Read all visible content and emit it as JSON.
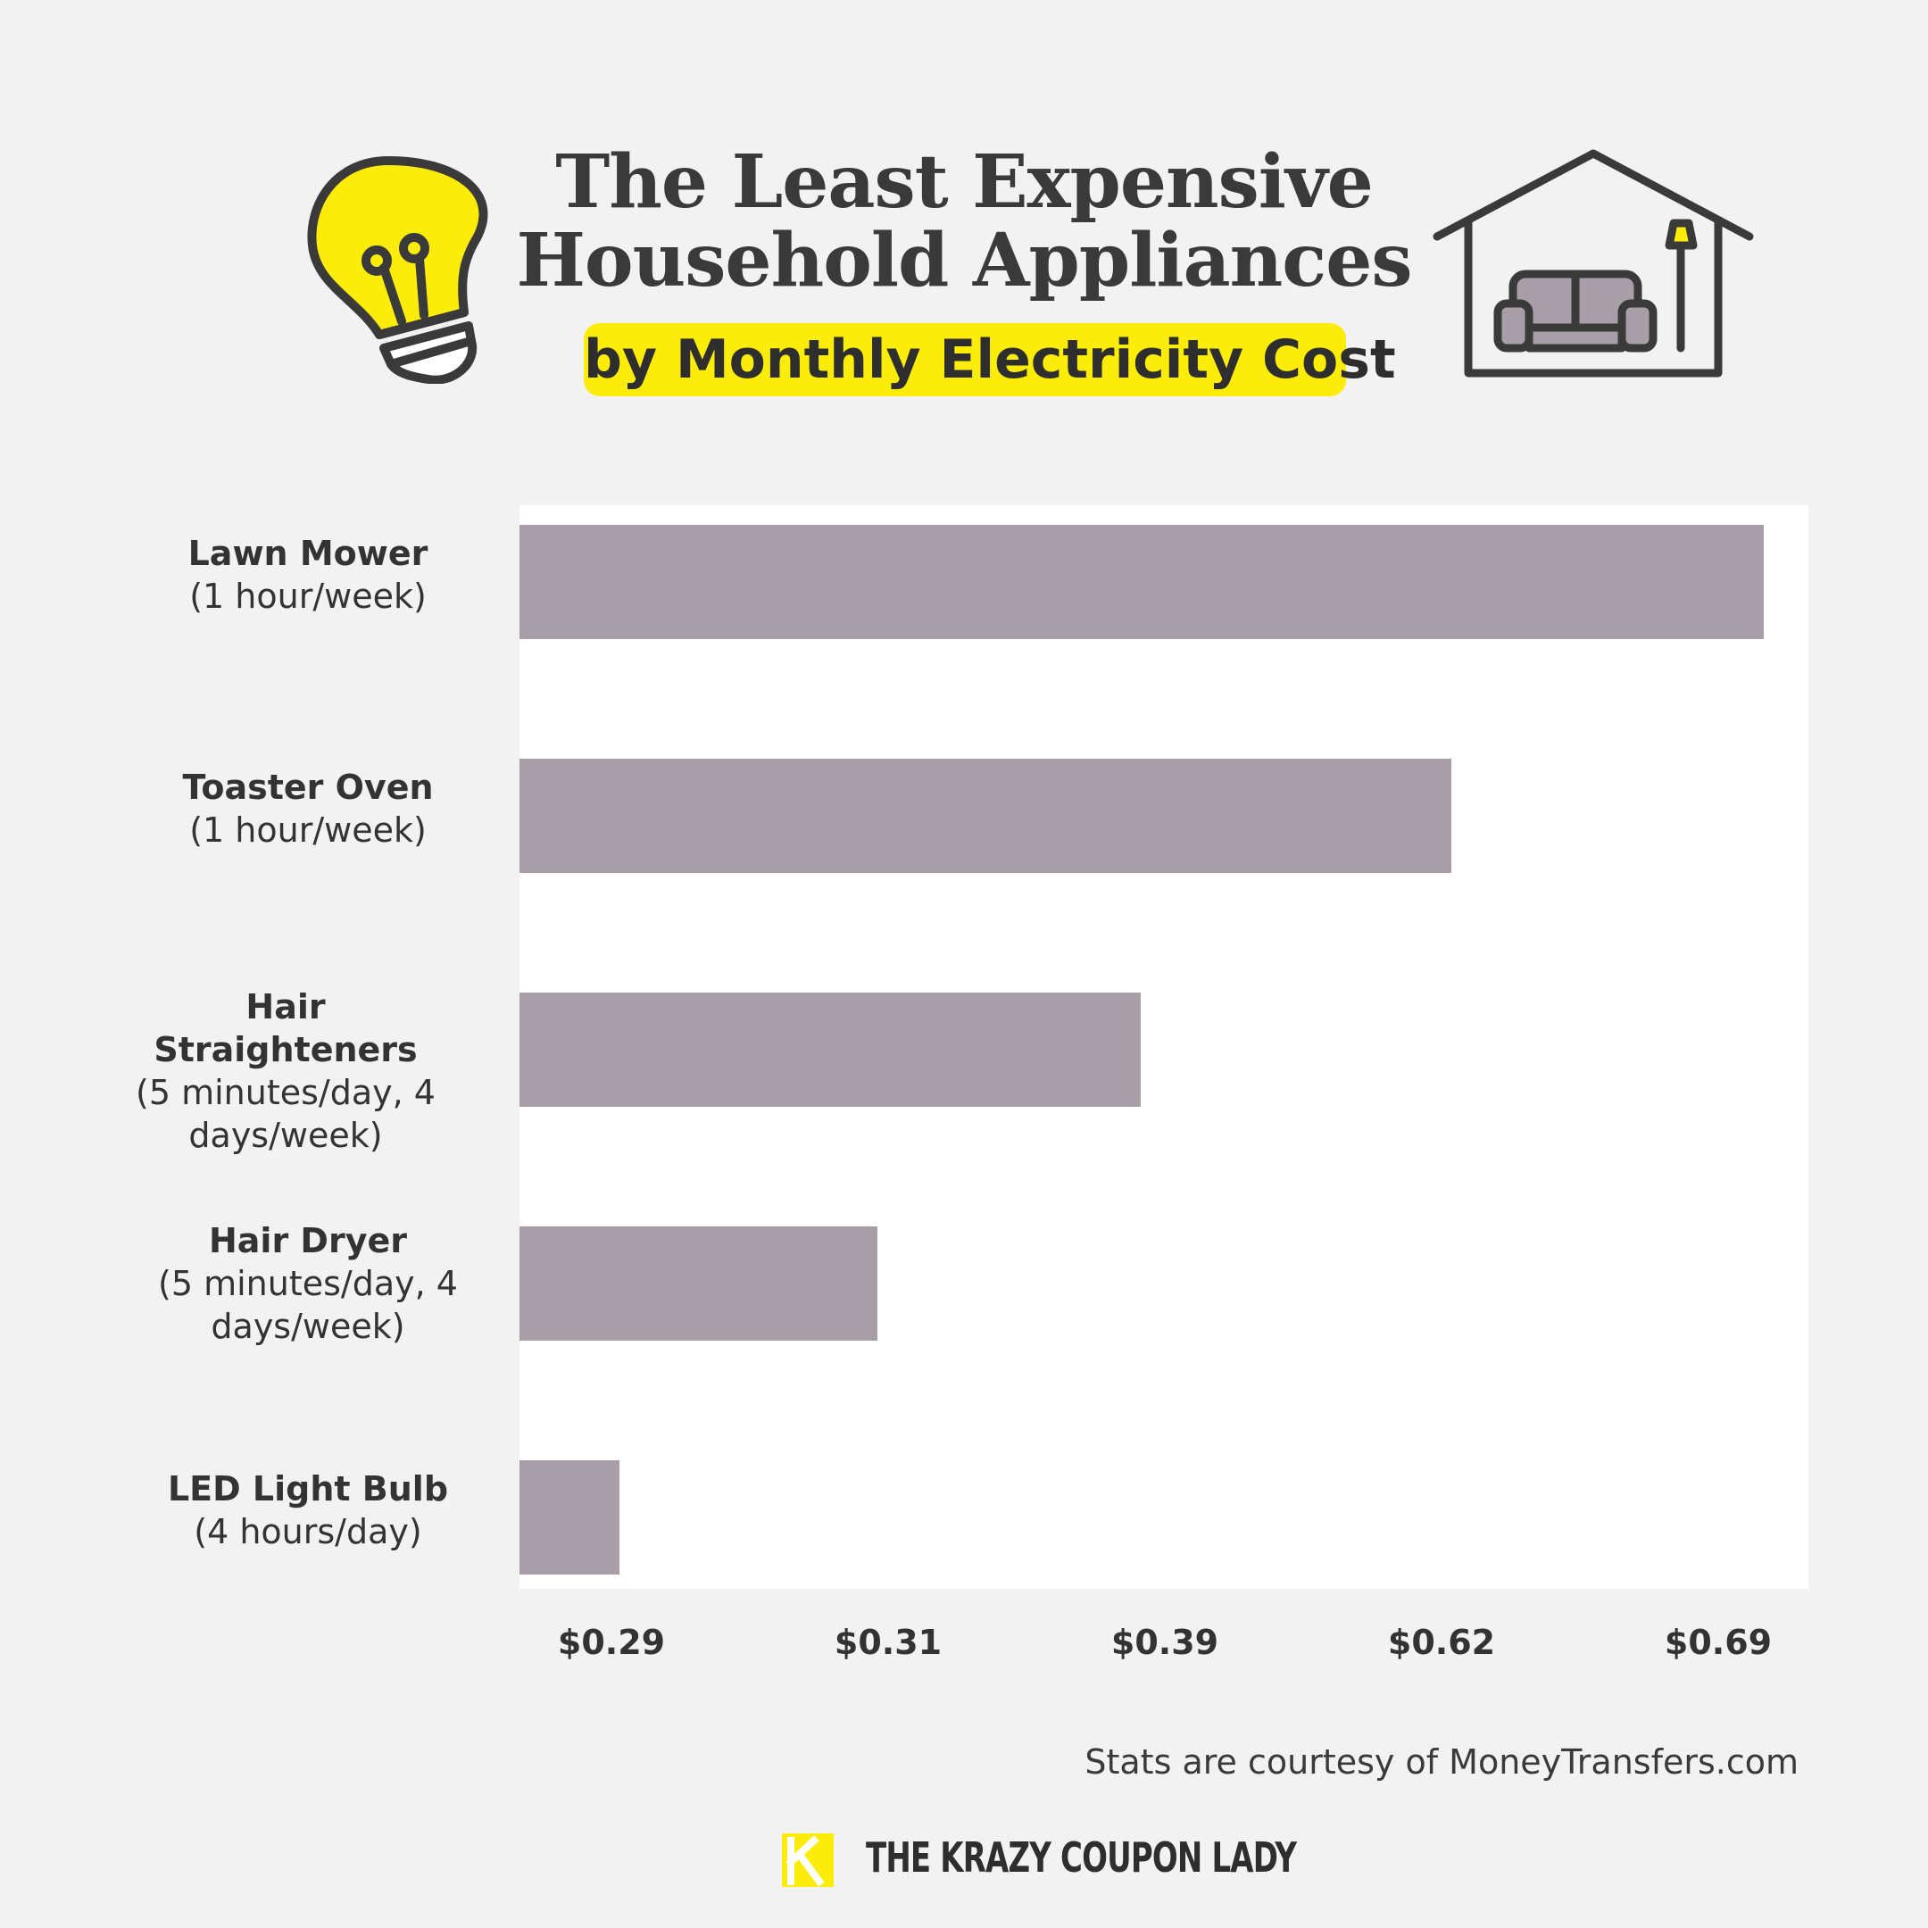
{
  "header": {
    "title_line1": "The Least Expensive",
    "title_line2": "Household Appliances",
    "subtitle": "by Monthly Electricity Cost"
  },
  "icons": {
    "left": "lightbulb-icon",
    "right": "house-with-couch-icon",
    "brand": "krazy-coupon-lady-logo"
  },
  "colors": {
    "accent_yellow": "#fcec0a",
    "bar": "#a89ea7",
    "text": "#3a3a3a",
    "background": "#f2f2f2",
    "plot_background": "#ffffff"
  },
  "chart_data": {
    "type": "bar",
    "orientation": "horizontal",
    "categories": [
      {
        "name": "Lawn Mower",
        "note": "(1 hour/week)"
      },
      {
        "name": "Toaster Oven",
        "note": "(1 hour/week)"
      },
      {
        "name": "Hair Straighteners",
        "note": "(5 minutes/day, 4 days/week)"
      },
      {
        "name": "Hair Dryer",
        "note": "(5 minutes/day, 4 days/week)"
      },
      {
        "name": "LED Light Bulb",
        "note": "(4 hours/day)"
      }
    ],
    "values": [
      0.69,
      0.62,
      0.39,
      0.31,
      0.29
    ],
    "tick_labels": [
      "$0.29",
      "$0.31",
      "$0.39",
      "$0.62",
      "$0.69"
    ],
    "unit": "$",
    "grid": false,
    "legend": "none"
  },
  "footer": {
    "source": "Stats are courtesy of MoneyTransfers.com",
    "brand": "THE KRAZY COUPON LADY"
  }
}
